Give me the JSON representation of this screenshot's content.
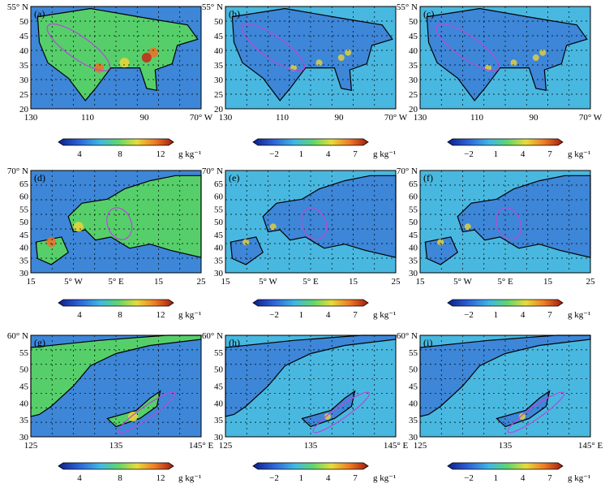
{
  "figure": {
    "rows": [
      {
        "region": "north-america",
        "y_ticks": [
          "55° N",
          "50",
          "45",
          "40",
          "35",
          "30",
          "25",
          "20"
        ],
        "x_ticks": [
          "130",
          "110",
          "90",
          "70° W"
        ],
        "panels": [
          {
            "label": "(a)",
            "field": "mean"
          },
          {
            "label": "(b)",
            "field": "difference"
          },
          {
            "label": "(c)",
            "field": "difference"
          }
        ]
      },
      {
        "region": "europe",
        "y_ticks": [
          "70° N",
          "65",
          "60",
          "55",
          "50",
          "45",
          "40",
          "35",
          "30"
        ],
        "x_ticks": [
          "15",
          "5° W",
          "5° E",
          "15",
          "25"
        ],
        "panels": [
          {
            "label": "(d)",
            "field": "mean"
          },
          {
            "label": "(e)",
            "field": "difference"
          },
          {
            "label": "(f)",
            "field": "difference"
          }
        ]
      },
      {
        "region": "east-asia",
        "y_ticks": [
          "60° N",
          "55",
          "50",
          "45",
          "40",
          "35",
          "30"
        ],
        "x_ticks": [
          "125",
          "135",
          "145° E"
        ],
        "panels": [
          {
            "label": "(g)",
            "field": "mean"
          },
          {
            "label": "(h)",
            "field": "difference"
          },
          {
            "label": "(i)",
            "field": "difference"
          }
        ]
      }
    ],
    "colorbars": {
      "mean": {
        "ticks": [
          "4",
          "8",
          "12"
        ],
        "unit": "g kg⁻¹"
      },
      "difference": {
        "ticks": [
          "−2",
          "1",
          "4",
          "7"
        ],
        "unit": "g kg⁻¹"
      }
    },
    "colors": {
      "ocean_deep": "#2b59c3",
      "ocean": "#3d86d8",
      "cyan": "#49b8e0",
      "land_green": "#56cf6a",
      "yellow": "#e8d23c",
      "orange": "#e8742a",
      "red": "#c62b1a",
      "ellipse": "#b04fd8"
    }
  }
}
